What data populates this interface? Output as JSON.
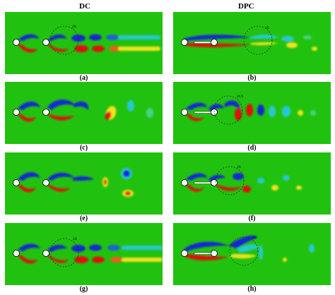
{
  "columns": [
    "DC",
    "DPC"
  ],
  "colors": {
    "background_field": "#21c20f",
    "red": "#e21010",
    "blue": "#1726d6",
    "yellow": "#f4e21a",
    "cyan": "#28c8d6",
    "cylinder": "#ffffff",
    "outline": "#000000",
    "dashed_circle": "#222222"
  },
  "panels": [
    {
      "label": "(a)",
      "mode": "2S"
    },
    {
      "label": "(b)",
      "mode": "2S"
    },
    {
      "label": "(c)",
      "mode": ""
    },
    {
      "label": "(d)",
      "mode": "2CS"
    },
    {
      "label": "(e)",
      "mode": ""
    },
    {
      "label": "(f)",
      "mode": "2S"
    },
    {
      "label": "(g)",
      "mode": "2S"
    },
    {
      "label": "(h)",
      "mode": "2S"
    }
  ]
}
